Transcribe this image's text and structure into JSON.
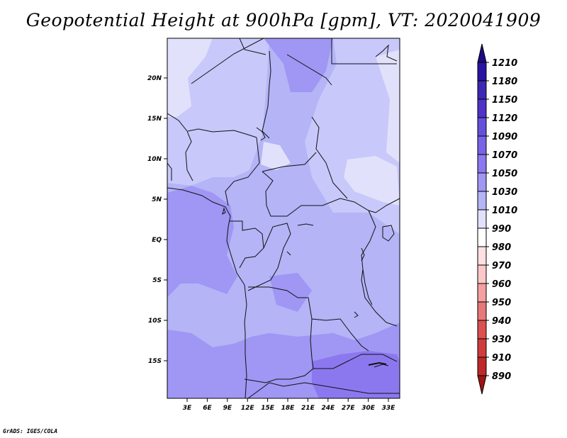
{
  "title": "Geopotential Height at 900hPa [gpm], VT: 2020041909",
  "credit": "GrADS: IGES/COLA",
  "colors": {
    "frame": "#000000",
    "border": "#111111",
    "c1010": "#e1e1fb",
    "c1030": "#c8c8fa",
    "c1050": "#b4b4f7",
    "c1070": "#a096f4",
    "c1090": "#8c78ee"
  },
  "map": {
    "lat_labels": [
      "20N",
      "15N",
      "10N",
      "5N",
      "EQ",
      "5S",
      "10S",
      "15S"
    ],
    "lon_labels": [
      "3E",
      "6E",
      "9E",
      "12E",
      "15E",
      "18E",
      "21E",
      "24E",
      "27E",
      "30E",
      "33E"
    ]
  },
  "colorbar": {
    "labels": [
      "1210",
      "1180",
      "1150",
      "1120",
      "1090",
      "1070",
      "1050",
      "1030",
      "1010",
      "990",
      "980",
      "970",
      "960",
      "950",
      "940",
      "930",
      "910",
      "890"
    ],
    "colors": [
      "#1e0a82",
      "#2814a0",
      "#3c28b4",
      "#5032c8",
      "#6450dc",
      "#7864e6",
      "#8c78f0",
      "#a096f4",
      "#b4b4f7",
      "#e1e1fb",
      "#ffffff",
      "#fde0e0",
      "#fbc8c8",
      "#f4a0a0",
      "#e87878",
      "#dc5050",
      "#d03c3c",
      "#be2828",
      "#a01414"
    ]
  }
}
